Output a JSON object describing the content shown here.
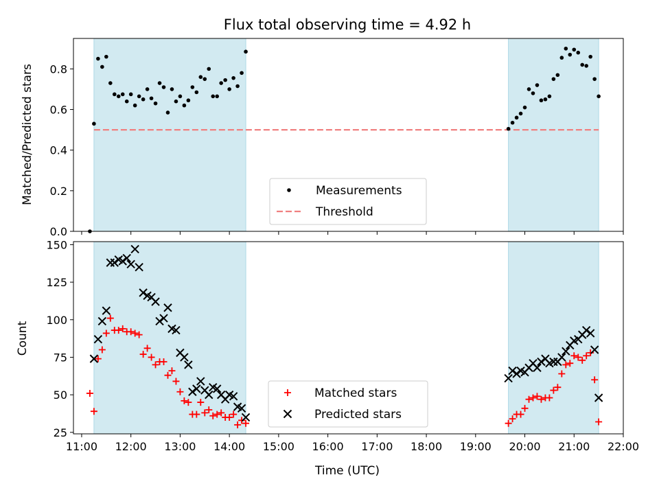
{
  "figure": {
    "title": "Flux total observing time = 4.92 h"
  },
  "chart_data": [
    {
      "type": "scatter",
      "ylabel": "Matched/Predicted stars",
      "xlim": [
        "10:50",
        "22:00"
      ],
      "ylim": [
        0,
        0.95
      ],
      "yticks": [
        "0.0",
        "0.2",
        "0.4",
        "0.6",
        "0.8"
      ],
      "shaded_intervals": [
        [
          "11:15",
          "14:20"
        ],
        [
          "19:40",
          "21:30"
        ]
      ],
      "threshold": {
        "y": 0.5,
        "from": "11:15",
        "to": "21:30",
        "color": "#f08080"
      },
      "legend": {
        "position": "lower-center",
        "entries": [
          "Measurements",
          "Threshold"
        ]
      },
      "series": [
        {
          "name": "Measurements",
          "marker": "dot",
          "color": "#000000",
          "points": [
            [
              "11:10",
              0.0
            ],
            [
              "11:15",
              0.53
            ],
            [
              "11:20",
              0.85
            ],
            [
              "11:25",
              0.81
            ],
            [
              "11:30",
              0.86
            ],
            [
              "11:35",
              0.73
            ],
            [
              "11:40",
              0.675
            ],
            [
              "11:45",
              0.665
            ],
            [
              "11:50",
              0.675
            ],
            [
              "11:55",
              0.64
            ],
            [
              "12:00",
              0.675
            ],
            [
              "12:05",
              0.62
            ],
            [
              "12:10",
              0.665
            ],
            [
              "12:15",
              0.65
            ],
            [
              "12:20",
              0.7
            ],
            [
              "12:25",
              0.655
            ],
            [
              "12:30",
              0.63
            ],
            [
              "12:35",
              0.73
            ],
            [
              "12:40",
              0.71
            ],
            [
              "12:45",
              0.585
            ],
            [
              "12:50",
              0.7
            ],
            [
              "12:55",
              0.64
            ],
            [
              "13:00",
              0.665
            ],
            [
              "13:05",
              0.62
            ],
            [
              "13:10",
              0.645
            ],
            [
              "13:15",
              0.71
            ],
            [
              "13:20",
              0.685
            ],
            [
              "13:25",
              0.76
            ],
            [
              "13:30",
              0.75
            ],
            [
              "13:35",
              0.8
            ],
            [
              "13:40",
              0.665
            ],
            [
              "13:45",
              0.665
            ],
            [
              "13:50",
              0.73
            ],
            [
              "13:55",
              0.745
            ],
            [
              "14:00",
              0.7
            ],
            [
              "14:05",
              0.755
            ],
            [
              "14:10",
              0.715
            ],
            [
              "14:15",
              0.78
            ],
            [
              "14:20",
              0.885
            ],
            [
              "19:40",
              0.505
            ],
            [
              "19:45",
              0.535
            ],
            [
              "19:50",
              0.56
            ],
            [
              "19:55",
              0.58
            ],
            [
              "20:00",
              0.61
            ],
            [
              "20:05",
              0.7
            ],
            [
              "20:10",
              0.68
            ],
            [
              "20:15",
              0.72
            ],
            [
              "20:20",
              0.645
            ],
            [
              "20:25",
              0.65
            ],
            [
              "20:30",
              0.665
            ],
            [
              "20:35",
              0.75
            ],
            [
              "20:40",
              0.77
            ],
            [
              "20:45",
              0.855
            ],
            [
              "20:50",
              0.9
            ],
            [
              "20:55",
              0.87
            ],
            [
              "21:00",
              0.895
            ],
            [
              "21:05",
              0.88
            ],
            [
              "21:10",
              0.82
            ],
            [
              "21:15",
              0.815
            ],
            [
              "21:20",
              0.86
            ],
            [
              "21:25",
              0.75
            ],
            [
              "21:30",
              0.665
            ]
          ]
        }
      ]
    },
    {
      "type": "scatter",
      "xlabel": "Time (UTC)",
      "ylabel": "Count",
      "xlim": [
        "10:50",
        "22:00"
      ],
      "ylim": [
        24,
        152
      ],
      "yticks": [
        "25",
        "50",
        "75",
        "100",
        "125",
        "150"
      ],
      "xticks": [
        "11:00",
        "12:00",
        "13:00",
        "14:00",
        "15:00",
        "16:00",
        "17:00",
        "18:00",
        "19:00",
        "20:00",
        "21:00",
        "22:00"
      ],
      "shaded_intervals": [
        [
          "11:15",
          "14:20"
        ],
        [
          "19:40",
          "21:30"
        ]
      ],
      "legend": {
        "position": "lower-center",
        "entries": [
          "Matched stars",
          "Predicted stars"
        ]
      },
      "series": [
        {
          "name": "Matched stars",
          "marker": "plus",
          "color": "#ff0000",
          "points": [
            [
              "11:10",
              51
            ],
            [
              "11:15",
              39
            ],
            [
              "11:20",
              74
            ],
            [
              "11:25",
              80
            ],
            [
              "11:30",
              91
            ],
            [
              "11:35",
              101
            ],
            [
              "11:40",
              93
            ],
            [
              "11:45",
              93
            ],
            [
              "11:50",
              94
            ],
            [
              "11:55",
              92
            ],
            [
              "12:00",
              92
            ],
            [
              "12:05",
              91
            ],
            [
              "12:10",
              90
            ],
            [
              "12:15",
              77
            ],
            [
              "12:20",
              81
            ],
            [
              "12:25",
              75
            ],
            [
              "12:30",
              70
            ],
            [
              "12:35",
              72
            ],
            [
              "12:40",
              72
            ],
            [
              "12:45",
              63
            ],
            [
              "12:50",
              66
            ],
            [
              "12:55",
              59
            ],
            [
              "13:00",
              52
            ],
            [
              "13:05",
              46
            ],
            [
              "13:10",
              45
            ],
            [
              "13:15",
              37
            ],
            [
              "13:20",
              37
            ],
            [
              "13:25",
              45
            ],
            [
              "13:30",
              38
            ],
            [
              "13:35",
              40
            ],
            [
              "13:40",
              36
            ],
            [
              "13:45",
              37
            ],
            [
              "13:50",
              38
            ],
            [
              "13:55",
              35
            ],
            [
              "14:00",
              35
            ],
            [
              "14:05",
              37
            ],
            [
              "14:10",
              30
            ],
            [
              "14:15",
              33
            ],
            [
              "14:20",
              31
            ],
            [
              "19:40",
              31
            ],
            [
              "19:45",
              34
            ],
            [
              "19:50",
              37
            ],
            [
              "19:55",
              37
            ],
            [
              "20:00",
              41
            ],
            [
              "20:05",
              47
            ],
            [
              "20:10",
              48
            ],
            [
              "20:15",
              49
            ],
            [
              "20:20",
              47
            ],
            [
              "20:25",
              48
            ],
            [
              "20:30",
              48
            ],
            [
              "20:35",
              53
            ],
            [
              "20:40",
              55
            ],
            [
              "20:45",
              64
            ],
            [
              "20:50",
              70
            ],
            [
              "20:55",
              71
            ],
            [
              "21:00",
              76
            ],
            [
              "21:05",
              75
            ],
            [
              "21:10",
              73
            ],
            [
              "21:15",
              76
            ],
            [
              "21:20",
              78
            ],
            [
              "21:25",
              60
            ],
            [
              "21:30",
              32
            ]
          ]
        },
        {
          "name": "Predicted stars",
          "marker": "x",
          "color": "#000000",
          "points": [
            [
              "11:15",
              74
            ],
            [
              "11:20",
              87
            ],
            [
              "11:25",
              99
            ],
            [
              "11:30",
              106
            ],
            [
              "11:35",
              138
            ],
            [
              "11:40",
              138
            ],
            [
              "11:45",
              140
            ],
            [
              "11:50",
              139
            ],
            [
              "11:55",
              141
            ],
            [
              "12:00",
              137
            ],
            [
              "12:05",
              147
            ],
            [
              "12:10",
              135
            ],
            [
              "12:15",
              118
            ],
            [
              "12:20",
              116
            ],
            [
              "12:25",
              115
            ],
            [
              "12:30",
              112
            ],
            [
              "12:35",
              99
            ],
            [
              "12:40",
              101
            ],
            [
              "12:45",
              108
            ],
            [
              "12:50",
              94
            ],
            [
              "12:55",
              93
            ],
            [
              "13:00",
              78
            ],
            [
              "13:05",
              75
            ],
            [
              "13:10",
              70
            ],
            [
              "13:15",
              52
            ],
            [
              "13:20",
              54
            ],
            [
              "13:25",
              59
            ],
            [
              "13:30",
              53
            ],
            [
              "13:35",
              50
            ],
            [
              "13:40",
              55
            ],
            [
              "13:45",
              54
            ],
            [
              "13:50",
              50
            ],
            [
              "13:55",
              47
            ],
            [
              "14:00",
              50
            ],
            [
              "14:05",
              49
            ],
            [
              "14:10",
              42
            ],
            [
              "14:15",
              41
            ],
            [
              "14:20",
              35
            ],
            [
              "19:40",
              61
            ],
            [
              "19:45",
              66
            ],
            [
              "19:50",
              64
            ],
            [
              "19:55",
              66
            ],
            [
              "20:00",
              65
            ],
            [
              "20:05",
              68
            ],
            [
              "20:10",
              71
            ],
            [
              "20:15",
              68
            ],
            [
              "20:20",
              72
            ],
            [
              "20:25",
              74
            ],
            [
              "20:30",
              71
            ],
            [
              "20:35",
              72
            ],
            [
              "20:40",
              72
            ],
            [
              "20:45",
              75
            ],
            [
              "20:50",
              79
            ],
            [
              "20:55",
              83
            ],
            [
              "21:00",
              86
            ],
            [
              "21:05",
              87
            ],
            [
              "21:10",
              90
            ],
            [
              "21:15",
              93
            ],
            [
              "21:20",
              91
            ],
            [
              "21:25",
              80
            ],
            [
              "21:30",
              48
            ]
          ]
        }
      ]
    }
  ],
  "colors": {
    "shade": "#add8e6",
    "threshold": "#f08080",
    "matched": "#ff0000",
    "predicted": "#000000",
    "measurement": "#000000"
  }
}
